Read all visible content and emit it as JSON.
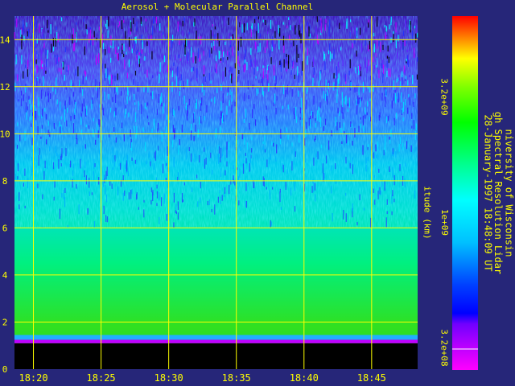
{
  "chart_data": {
    "type": "heatmap",
    "title": "Aerosol + Molecular Parallel Channel",
    "ylabel": "itude (km)",
    "ylim": [
      0,
      15
    ],
    "yticks": [
      "0",
      "2",
      "4",
      "6",
      "8",
      "10",
      "12",
      "14"
    ],
    "xticks": [
      "18:20",
      "18:25",
      "18:30",
      "18:35",
      "18:40",
      "18:45"
    ],
    "grid": true,
    "colorbar": {
      "scale": "log",
      "tick_labels": [
        "3.2e+08",
        "1e+09",
        "3.2e+09"
      ],
      "colors": [
        "#ff00ff",
        "#8000ff",
        "#0000ff",
        "#00ffff",
        "#00ff80",
        "#00ff00",
        "#ffff00",
        "#ff0000"
      ]
    },
    "info": {
      "line1": "niversity of Wisconsin",
      "line2": "gh Spectral Resolution Lidar",
      "line3": "28-January-1997 18:48:09 UT"
    }
  }
}
